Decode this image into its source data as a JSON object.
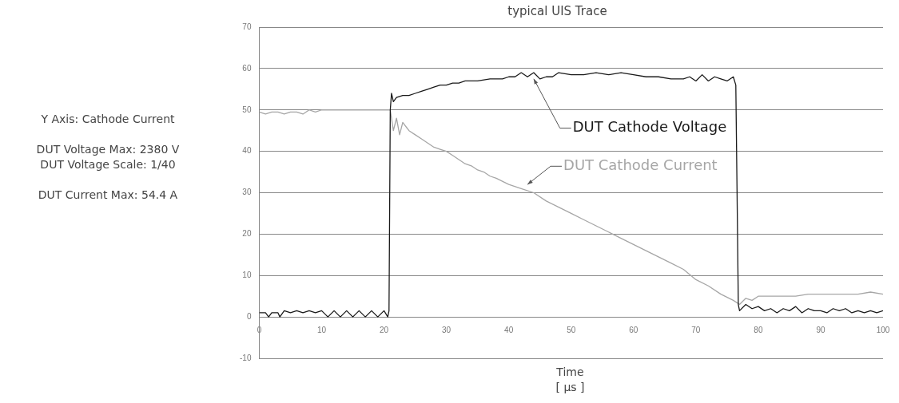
{
  "chart_data": {
    "type": "line",
    "title": "typical UIS Trace",
    "xlabel": "Time\n[ µs ]",
    "annotations": [
      "Y Axis: Cathode Current",
      "DUT Voltage Max: 2380 V\nDUT Voltage Scale: 1/40",
      "DUT Current Max: 54.4 A"
    ],
    "xlim": [
      0,
      100
    ],
    "xticks": [
      0,
      10,
      20,
      30,
      40,
      50,
      60,
      70,
      80,
      90,
      100
    ],
    "ylim": [
      -10,
      70
    ],
    "yticks": [
      -10,
      0,
      10,
      20,
      30,
      40,
      50,
      60,
      70
    ],
    "grid": "y",
    "legend": false,
    "marker": "none",
    "line_style": "solid",
    "series": [
      {
        "name": "DUT Cathode Voltage",
        "color": "#1a1a1a",
        "x": [
          0,
          1,
          1.5,
          2,
          3,
          3.3,
          4,
          5,
          6,
          7,
          8,
          9,
          10,
          11,
          12,
          13,
          14,
          15,
          16,
          17,
          18,
          19,
          20,
          20.6,
          20.8,
          21,
          21.2,
          21.5,
          22,
          23,
          24,
          25,
          26,
          27,
          28,
          29,
          30,
          31,
          32,
          33,
          35,
          37,
          39,
          40,
          41,
          42,
          43,
          44,
          45,
          46,
          47,
          48,
          50,
          52,
          54,
          56,
          58,
          60,
          62,
          64,
          66,
          68,
          69,
          70,
          71,
          72,
          73,
          74,
          75,
          76,
          76.4,
          76.6,
          76.8,
          77,
          78,
          79,
          80,
          81,
          82,
          83,
          84,
          85,
          86,
          87,
          88,
          89,
          90,
          91,
          92,
          93,
          94,
          95,
          96,
          97,
          98,
          99,
          100
        ],
        "values": [
          1,
          1,
          0,
          1,
          1,
          0,
          1.5,
          1,
          1.5,
          1,
          1.5,
          1,
          1.5,
          0,
          1.5,
          0,
          1.5,
          0,
          1.5,
          0,
          1.5,
          0,
          1.5,
          0,
          1.5,
          50,
          54,
          52,
          53,
          53.5,
          53.5,
          54,
          54.5,
          55,
          55.5,
          56,
          56,
          56.5,
          56.5,
          57,
          57,
          57.5,
          57.5,
          58,
          58,
          59,
          58,
          59,
          57.5,
          58,
          58,
          59,
          58.5,
          58.5,
          59,
          58.5,
          59,
          58.5,
          58,
          58,
          57.5,
          57.5,
          58,
          57,
          58.5,
          57,
          58,
          57.5,
          57,
          58,
          56,
          30,
          3,
          1.5,
          3,
          2,
          2.5,
          1.5,
          2,
          1,
          2,
          1.5,
          2.5,
          1,
          2,
          1.5,
          1.5,
          1,
          2,
          1.5,
          2,
          1,
          1.5,
          1,
          1.5,
          1,
          1.5
        ]
      },
      {
        "name": "DUT Cathode Current",
        "color": "#a6a6a6",
        "x": [
          0,
          1,
          2,
          3,
          4,
          5,
          6,
          7,
          8,
          9,
          10,
          12,
          14,
          16,
          18,
          20,
          21,
          21.5,
          22,
          22.5,
          23,
          24,
          25,
          26,
          27,
          28,
          29,
          30,
          31,
          32,
          33,
          34,
          35,
          36,
          37,
          38,
          40,
          42,
          44,
          46,
          48,
          50,
          52,
          54,
          56,
          58,
          60,
          62,
          64,
          66,
          68,
          70,
          72,
          74,
          76,
          77,
          78,
          79,
          80,
          82,
          84,
          86,
          88,
          90,
          92,
          94,
          96,
          98,
          100
        ],
        "values": [
          49.5,
          49,
          49.5,
          49.5,
          49,
          49.5,
          49.5,
          49,
          50,
          49.5,
          50,
          50,
          50,
          50,
          50,
          50,
          50,
          45,
          48,
          44,
          47,
          45,
          44,
          43,
          42,
          41,
          40.5,
          40,
          39,
          38,
          37,
          36.5,
          35.5,
          35,
          34,
          33.5,
          32,
          31,
          30,
          28,
          26.5,
          25,
          23.5,
          22,
          20.5,
          19,
          17.5,
          16,
          14.5,
          13,
          11.5,
          9,
          7.5,
          5.5,
          4,
          3,
          4.5,
          4,
          5,
          5,
          5,
          5,
          5.5,
          5.5,
          5.5,
          5.5,
          5.5,
          6,
          5.5
        ]
      }
    ]
  }
}
